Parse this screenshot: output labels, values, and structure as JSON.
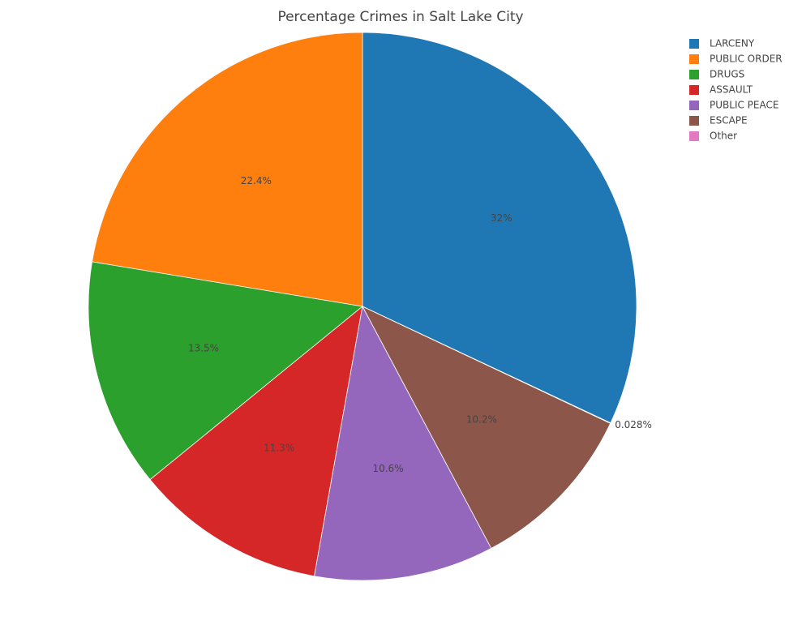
{
  "chart_data": {
    "type": "pie",
    "title": "Percentage Crimes in Salt Lake City",
    "categories": [
      "LARCENY",
      "PUBLIC ORDER",
      "DRUGS",
      "ASSAULT",
      "PUBLIC PEACE",
      "ESCAPE",
      "Other"
    ],
    "values": [
      32,
      22.4,
      13.5,
      11.3,
      10.6,
      10.2,
      0.028
    ],
    "value_labels": [
      "32%",
      "22.4%",
      "13.5%",
      "11.3%",
      "10.6%",
      "10.2%",
      "0.028%"
    ],
    "colors": [
      "#1f77b4",
      "#ff7f0e",
      "#2ca02c",
      "#d62728",
      "#9467bd",
      "#8c564b",
      "#e377c2"
    ],
    "legend": "top-right"
  }
}
